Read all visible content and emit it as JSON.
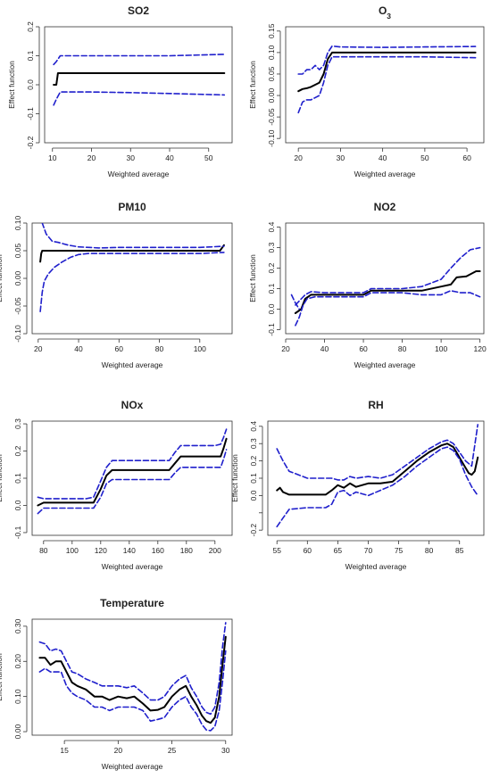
{
  "colors": {
    "estimate": "#000000",
    "ci": "#1f1fcc",
    "axis": "#333333"
  },
  "chart_data": [
    {
      "type": "line",
      "title": "SO2",
      "xlabel": "Weighted average",
      "ylabel": "Effect function",
      "xlim": [
        8,
        56
      ],
      "ylim": [
        -0.2,
        0.2
      ],
      "xticks": [
        10,
        20,
        30,
        40,
        50
      ],
      "yticks": [
        -0.2,
        -0.1,
        0.0,
        0.1,
        0.2
      ],
      "ytick_labels": [
        "-0.2",
        "-0.1",
        "0.0",
        "0.1",
        "0.2"
      ],
      "series": [
        {
          "role": "estimate",
          "x": [
            10.3,
            11,
            11.4,
            12,
            20,
            30,
            40,
            54
          ],
          "y": [
            0.0,
            0.0,
            0.04,
            0.04,
            0.04,
            0.04,
            0.04,
            0.04
          ]
        },
        {
          "role": "ci_upper",
          "x": [
            10.3,
            11,
            12,
            20,
            30,
            40,
            54
          ],
          "y": [
            0.07,
            0.08,
            0.1,
            0.1,
            0.1,
            0.1,
            0.105
          ]
        },
        {
          "role": "ci_lower",
          "x": [
            10.3,
            11,
            12,
            20,
            30,
            40,
            54
          ],
          "y": [
            -0.07,
            -0.05,
            -0.025,
            -0.025,
            -0.027,
            -0.03,
            -0.035
          ]
        }
      ]
    },
    {
      "type": "line",
      "title": "O",
      "title_sub": "3",
      "xlabel": "Weighted average",
      "ylabel": "Effect function",
      "xlim": [
        17,
        64
      ],
      "ylim": [
        -0.11,
        0.16
      ],
      "xticks": [
        20,
        30,
        40,
        50,
        60
      ],
      "yticks": [
        -0.1,
        -0.05,
        0.0,
        0.05,
        0.1,
        0.15
      ],
      "ytick_labels": [
        "-0.10",
        "-0.05",
        "0.00",
        "0.05",
        "0.10",
        "0.15"
      ],
      "series": [
        {
          "role": "estimate",
          "x": [
            20,
            21,
            22,
            23,
            24,
            25,
            26,
            27,
            28,
            30,
            40,
            50,
            62
          ],
          "y": [
            0.01,
            0.015,
            0.017,
            0.02,
            0.025,
            0.03,
            0.05,
            0.085,
            0.1,
            0.1,
            0.1,
            0.1,
            0.1
          ]
        },
        {
          "role": "ci_upper",
          "x": [
            20,
            21,
            22,
            23,
            24,
            25,
            26,
            27,
            28,
            30,
            40,
            50,
            62
          ],
          "y": [
            0.05,
            0.05,
            0.06,
            0.06,
            0.07,
            0.06,
            0.07,
            0.1,
            0.115,
            0.113,
            0.112,
            0.113,
            0.114
          ]
        },
        {
          "role": "ci_lower",
          "x": [
            20,
            21,
            22,
            23,
            24,
            25,
            26,
            27,
            28,
            30,
            40,
            50,
            62
          ],
          "y": [
            -0.04,
            -0.015,
            -0.01,
            -0.01,
            -0.005,
            0.0,
            0.03,
            0.07,
            0.09,
            0.09,
            0.09,
            0.09,
            0.088
          ]
        }
      ]
    },
    {
      "type": "line",
      "title": "PM10",
      "xlabel": "Weighted average",
      "ylabel": "Effect function",
      "xlim": [
        17,
        116
      ],
      "ylim": [
        -0.1,
        0.1
      ],
      "xticks": [
        20,
        40,
        60,
        80,
        100
      ],
      "yticks": [
        -0.1,
        -0.05,
        0.0,
        0.05,
        0.1
      ],
      "ytick_labels": [
        "-0.10",
        "-0.05",
        "0.00",
        "0.05",
        "0.10"
      ],
      "series": [
        {
          "role": "estimate",
          "x": [
            21,
            21.5,
            22,
            23,
            30,
            40,
            60,
            80,
            100,
            110,
            112
          ],
          "y": [
            0.03,
            0.045,
            0.05,
            0.05,
            0.05,
            0.05,
            0.05,
            0.05,
            0.05,
            0.05,
            0.06
          ]
        },
        {
          "role": "ci_upper",
          "x": [
            21,
            22,
            24,
            27,
            30,
            35,
            40,
            50,
            60,
            80,
            100,
            112
          ],
          "y": [
            0.115,
            0.1,
            0.08,
            0.067,
            0.065,
            0.06,
            0.057,
            0.055,
            0.056,
            0.056,
            0.056,
            0.058
          ]
        },
        {
          "role": "ci_lower",
          "x": [
            21,
            22,
            23,
            25,
            28,
            32,
            36,
            40,
            45,
            50,
            60,
            80,
            100,
            112
          ],
          "y": [
            -0.06,
            -0.025,
            -0.005,
            0.008,
            0.02,
            0.03,
            0.038,
            0.043,
            0.045,
            0.045,
            0.045,
            0.045,
            0.045,
            0.047
          ]
        }
      ]
    },
    {
      "type": "line",
      "title": "NO2",
      "xlabel": "Weighted average",
      "ylabel": "Effect function",
      "xlim": [
        20,
        122
      ],
      "ylim": [
        -0.12,
        0.42
      ],
      "xticks": [
        20,
        40,
        60,
        80,
        100,
        120
      ],
      "yticks": [
        -0.1,
        0.0,
        0.1,
        0.2,
        0.3,
        0.4
      ],
      "ytick_labels": [
        "-0.1",
        "0.0",
        "0.1",
        "0.2",
        "0.3",
        "0.4"
      ],
      "series": [
        {
          "role": "estimate",
          "x": [
            25,
            28,
            30,
            33,
            40,
            50,
            60,
            64,
            70,
            80,
            90,
            100,
            105,
            108,
            113,
            118,
            120
          ],
          "y": [
            -0.02,
            0.0,
            0.05,
            0.07,
            0.07,
            0.07,
            0.07,
            0.09,
            0.09,
            0.09,
            0.09,
            0.11,
            0.12,
            0.155,
            0.16,
            0.185,
            0.185
          ]
        },
        {
          "role": "ci_upper",
          "x": [
            25,
            28,
            30,
            33,
            40,
            50,
            60,
            64,
            70,
            80,
            90,
            100,
            105,
            110,
            115,
            120
          ],
          "y": [
            0.02,
            0.05,
            0.07,
            0.085,
            0.08,
            0.08,
            0.08,
            0.1,
            0.1,
            0.1,
            0.11,
            0.145,
            0.2,
            0.25,
            0.29,
            0.3
          ]
        },
        {
          "role": "ci_lower",
          "x": [
            25,
            27,
            29,
            31,
            35,
            40,
            50,
            60,
            64,
            70,
            80,
            90,
            100,
            105,
            110,
            115,
            120
          ],
          "y": [
            -0.08,
            -0.04,
            0.02,
            0.05,
            0.06,
            0.06,
            0.06,
            0.06,
            0.08,
            0.08,
            0.08,
            0.07,
            0.07,
            0.09,
            0.08,
            0.08,
            0.06
          ]
        },
        {
          "role": "ci_lower_start",
          "x": [
            23,
            25,
            27
          ],
          "y": [
            0.07,
            0.03,
            0.0
          ]
        }
      ]
    },
    {
      "type": "line",
      "title": "NOx",
      "xlabel": "Weighted average",
      "ylabel": "Effect function",
      "xlim": [
        72,
        212
      ],
      "ylim": [
        -0.11,
        0.31
      ],
      "xticks": [
        80,
        100,
        120,
        140,
        160,
        180,
        200
      ],
      "yticks": [
        -0.1,
        0.0,
        0.1,
        0.2,
        0.3
      ],
      "ytick_labels": [
        "-0.1",
        "0.0",
        "0.1",
        "0.2",
        "0.3"
      ],
      "series": [
        {
          "role": "estimate",
          "x": [
            76,
            80,
            90,
            100,
            110,
            115,
            120,
            124,
            128,
            140,
            160,
            168,
            172,
            176,
            180,
            190,
            200,
            204,
            206,
            208
          ],
          "y": [
            0.0,
            0.01,
            0.01,
            0.01,
            0.01,
            0.01,
            0.06,
            0.11,
            0.13,
            0.13,
            0.13,
            0.13,
            0.155,
            0.18,
            0.18,
            0.18,
            0.18,
            0.18,
            0.21,
            0.245
          ]
        },
        {
          "role": "ci_upper",
          "x": [
            76,
            80,
            90,
            100,
            110,
            115,
            120,
            124,
            128,
            140,
            160,
            168,
            172,
            176,
            180,
            190,
            200,
            204,
            206,
            208
          ],
          "y": [
            0.03,
            0.025,
            0.025,
            0.025,
            0.025,
            0.03,
            0.09,
            0.14,
            0.165,
            0.165,
            0.165,
            0.165,
            0.195,
            0.22,
            0.22,
            0.22,
            0.22,
            0.225,
            0.25,
            0.28
          ]
        },
        {
          "role": "ci_lower",
          "x": [
            76,
            80,
            90,
            100,
            110,
            115,
            120,
            124,
            128,
            140,
            160,
            168,
            172,
            176,
            180,
            190,
            200,
            204,
            206,
            208
          ],
          "y": [
            -0.03,
            -0.01,
            -0.01,
            -0.01,
            -0.01,
            -0.01,
            0.03,
            0.08,
            0.095,
            0.095,
            0.095,
            0.095,
            0.12,
            0.14,
            0.14,
            0.14,
            0.14,
            0.14,
            0.17,
            0.205
          ]
        }
      ]
    },
    {
      "type": "line",
      "title": "RH",
      "xlabel": "Weighted average",
      "ylabel": "Effect function",
      "xlim": [
        53.5,
        89
      ],
      "ylim": [
        -0.23,
        0.43
      ],
      "xticks": [
        55,
        60,
        65,
        70,
        75,
        80,
        85
      ],
      "yticks": [
        -0.2,
        -0.1,
        0.0,
        0.1,
        0.2,
        0.3,
        0.4
      ],
      "ytick_labels": [
        "-0.2",
        "",
        "0.0",
        "0.1",
        "0.2",
        "0.3",
        "0.4"
      ],
      "series": [
        {
          "role": "estimate",
          "x": [
            55,
            55.5,
            56,
            57,
            60,
            63,
            64,
            65,
            66,
            67,
            68,
            70,
            72,
            74,
            76,
            78,
            80,
            82,
            83,
            84,
            85,
            86,
            86.5,
            87,
            87.5,
            88
          ],
          "y": [
            0.03,
            0.045,
            0.02,
            0.005,
            0.005,
            0.005,
            0.03,
            0.06,
            0.045,
            0.07,
            0.05,
            0.07,
            0.07,
            0.08,
            0.14,
            0.2,
            0.25,
            0.29,
            0.3,
            0.28,
            0.22,
            0.16,
            0.13,
            0.12,
            0.14,
            0.22
          ]
        },
        {
          "role": "ci_upper",
          "x": [
            55,
            56,
            57,
            60,
            63,
            64,
            65,
            66,
            67,
            68,
            70,
            72,
            74,
            76,
            78,
            80,
            82,
            83,
            84,
            85,
            86,
            87,
            88
          ],
          "y": [
            0.27,
            0.2,
            0.14,
            0.1,
            0.1,
            0.1,
            0.09,
            0.09,
            0.11,
            0.1,
            0.11,
            0.1,
            0.12,
            0.17,
            0.22,
            0.27,
            0.31,
            0.32,
            0.3,
            0.25,
            0.2,
            0.17,
            0.41
          ]
        },
        {
          "role": "ci_lower",
          "x": [
            55,
            56,
            57,
            60,
            63,
            64,
            65,
            66,
            67,
            68,
            70,
            72,
            74,
            76,
            78,
            80,
            82,
            83,
            84,
            85,
            86,
            87,
            88
          ],
          "y": [
            -0.18,
            -0.13,
            -0.08,
            -0.07,
            -0.07,
            -0.05,
            0.02,
            0.03,
            0.0,
            0.02,
            0.0,
            0.03,
            0.06,
            0.11,
            0.17,
            0.22,
            0.27,
            0.28,
            0.26,
            0.21,
            0.12,
            0.05,
            0.0
          ]
        }
      ]
    },
    {
      "type": "line",
      "title": "Temperature",
      "xlabel": "Weighted average",
      "ylabel": "Effect function",
      "xlim": [
        12,
        30.6
      ],
      "ylim": [
        -0.01,
        0.32
      ],
      "xticks": [
        15,
        20,
        25,
        30
      ],
      "yticks": [
        0.0,
        0.1,
        0.2,
        0.3
      ],
      "ytick_labels": [
        "0.00",
        "0.10",
        "0.20",
        "0.30"
      ],
      "series": [
        {
          "role": "estimate",
          "x": [
            12.7,
            13.2,
            13.7,
            14.2,
            14.7,
            15.2,
            15.7,
            16.2,
            17,
            17.8,
            18.5,
            19.2,
            20,
            20.8,
            21.5,
            22.3,
            23,
            23.7,
            24.3,
            25,
            25.7,
            26.3,
            26.8,
            27.3,
            27.8,
            28.2,
            28.6,
            29,
            29.4,
            29.7,
            30
          ],
          "y": [
            0.21,
            0.21,
            0.19,
            0.2,
            0.2,
            0.17,
            0.14,
            0.13,
            0.12,
            0.1,
            0.1,
            0.09,
            0.1,
            0.095,
            0.1,
            0.08,
            0.06,
            0.062,
            0.07,
            0.1,
            0.12,
            0.13,
            0.1,
            0.075,
            0.045,
            0.03,
            0.025,
            0.04,
            0.1,
            0.19,
            0.27
          ]
        },
        {
          "role": "ci_upper",
          "x": [
            12.7,
            13.2,
            13.7,
            14.2,
            14.7,
            15.2,
            15.7,
            16.2,
            17,
            17.8,
            18.5,
            19.2,
            20,
            20.8,
            21.5,
            22.3,
            23,
            23.7,
            24.3,
            25,
            25.7,
            26.3,
            26.8,
            27.3,
            27.8,
            28.2,
            28.6,
            29,
            29.4,
            29.7,
            30
          ],
          "y": [
            0.255,
            0.25,
            0.23,
            0.235,
            0.23,
            0.2,
            0.17,
            0.165,
            0.15,
            0.14,
            0.13,
            0.13,
            0.13,
            0.125,
            0.13,
            0.11,
            0.09,
            0.09,
            0.1,
            0.13,
            0.15,
            0.16,
            0.125,
            0.1,
            0.07,
            0.055,
            0.05,
            0.07,
            0.14,
            0.24,
            0.31
          ]
        },
        {
          "role": "ci_lower",
          "x": [
            12.7,
            13.2,
            13.7,
            14.2,
            14.7,
            15.2,
            15.7,
            16.2,
            17,
            17.8,
            18.5,
            19.2,
            20,
            20.8,
            21.5,
            22.3,
            23,
            23.7,
            24.3,
            25,
            25.7,
            26.3,
            26.8,
            27.3,
            27.8,
            28.2,
            28.6,
            29,
            29.4,
            29.7,
            30
          ],
          "y": [
            0.17,
            0.18,
            0.17,
            0.17,
            0.17,
            0.13,
            0.11,
            0.1,
            0.09,
            0.07,
            0.07,
            0.06,
            0.07,
            0.07,
            0.07,
            0.06,
            0.03,
            0.035,
            0.04,
            0.07,
            0.09,
            0.1,
            0.07,
            0.05,
            0.02,
            0.005,
            0.003,
            0.015,
            0.06,
            0.14,
            0.23
          ]
        }
      ]
    }
  ]
}
